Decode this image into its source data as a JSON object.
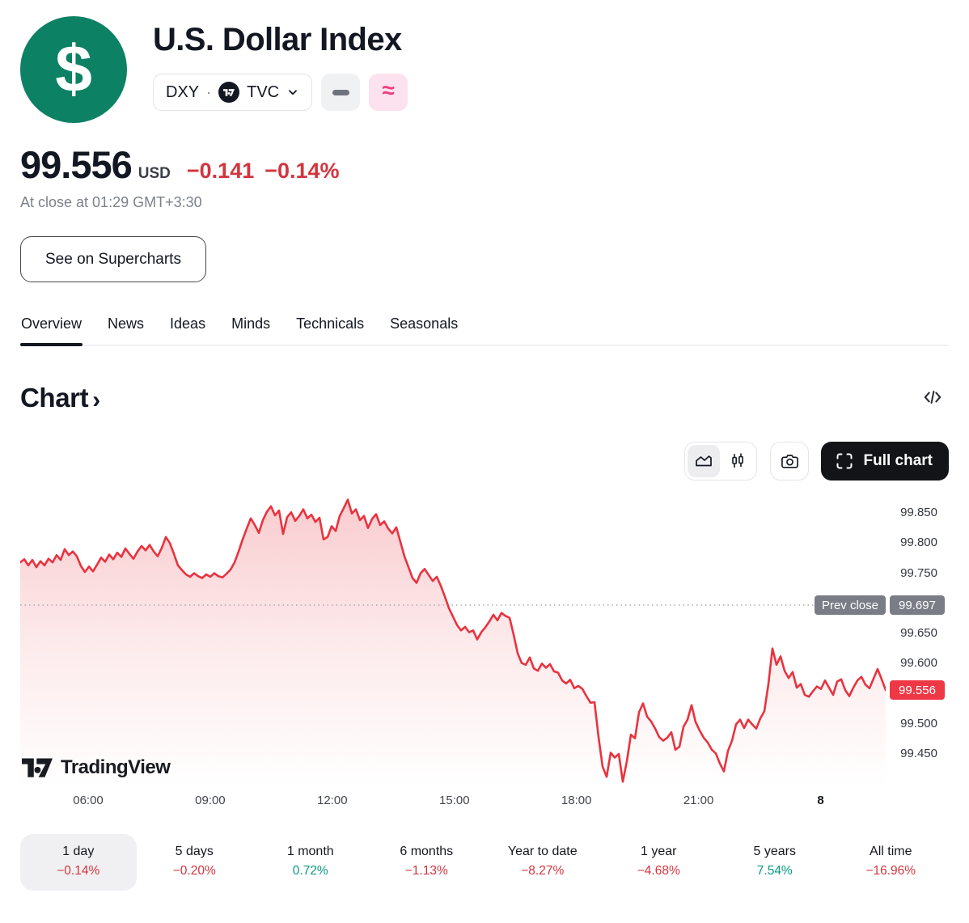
{
  "header": {
    "logo_glyph": "$",
    "title": "U.S. Dollar Index",
    "symbol": "DXY",
    "separator": "·",
    "exchange": "TVC",
    "approx_glyph": "≈",
    "price": "99.556",
    "currency": "USD",
    "change": "−0.141",
    "change_pct": "−0.14%",
    "status_note": "At close at 01:29 GMT+3:30",
    "supercharts_label": "See on Supercharts"
  },
  "tabs": [
    "Overview",
    "News",
    "Ideas",
    "Minds",
    "Technicals",
    "Seasonals"
  ],
  "active_tab": "Overview",
  "chart_section": {
    "title": "Chart",
    "chevron": "›",
    "full_chart_label": "Full chart",
    "watermark": "TradingView"
  },
  "colors": {
    "brand_green": "#0d8164",
    "pink_bg": "#fce1ee",
    "pink_icon": "#f03e81",
    "dash_gray": "#6f737e",
    "red_text": "#d2353f",
    "green_text": "#089981",
    "chart_line": "#e8333f",
    "chart_fill_top": "rgba(232,51,63,0.25)",
    "chart_fill_mid": "rgba(232,51,63,0.10)",
    "chart_fill_bottom": "rgba(232,51,63,0)",
    "prev_close_badge": "#7a7d86",
    "last_price_badge": "#ef3845",
    "dotted_line": "#9b9ea7"
  },
  "chart_data": {
    "type": "area",
    "title": "U.S. Dollar Index intraday (1 day)",
    "xlabel": "",
    "ylabel": "",
    "grid": false,
    "ylim": [
      99.395,
      99.885
    ],
    "x_range_hours": [
      4.33,
      25.6
    ],
    "sampling": "uniform over x_range_hours",
    "x_ticks": [
      {
        "label": "06:00",
        "hour": 6
      },
      {
        "label": "09:00",
        "hour": 9
      },
      {
        "label": "12:00",
        "hour": 12
      },
      {
        "label": "15:00",
        "hour": 15
      },
      {
        "label": "18:00",
        "hour": 18
      },
      {
        "label": "21:00",
        "hour": 21
      },
      {
        "label": "8",
        "hour": 24,
        "bold": true
      }
    ],
    "y_ticks": [
      "99.850",
      "99.800",
      "99.750",
      "99.650",
      "99.600",
      "99.500",
      "99.450"
    ],
    "prev_close": {
      "label": "Prev close",
      "value": 99.697,
      "display": "99.697"
    },
    "last": {
      "value": 99.556,
      "display": "99.556"
    },
    "prices": [
      99.768,
      99.773,
      99.763,
      99.772,
      99.76,
      99.77,
      99.763,
      99.774,
      99.768,
      99.78,
      99.772,
      99.79,
      99.78,
      99.786,
      99.778,
      99.762,
      99.752,
      99.761,
      99.753,
      99.764,
      99.776,
      99.769,
      99.781,
      99.773,
      99.784,
      99.777,
      99.791,
      99.782,
      99.774,
      99.786,
      99.795,
      99.788,
      99.797,
      99.786,
      99.778,
      99.792,
      99.81,
      99.8,
      99.782,
      99.763,
      99.755,
      99.748,
      99.744,
      99.75,
      99.745,
      99.742,
      99.748,
      99.744,
      99.75,
      99.745,
      99.743,
      99.749,
      99.756,
      99.768,
      99.786,
      99.806,
      99.824,
      99.841,
      99.83,
      99.817,
      99.838,
      99.852,
      99.861,
      99.846,
      99.854,
      99.815,
      99.843,
      99.851,
      99.837,
      99.845,
      99.856,
      99.841,
      99.847,
      99.835,
      99.842,
      99.806,
      99.81,
      99.828,
      99.82,
      99.845,
      99.858,
      99.872,
      99.849,
      99.856,
      99.838,
      99.845,
      99.825,
      99.84,
      99.848,
      99.83,
      99.836,
      99.824,
      99.816,
      99.826,
      99.802,
      99.778,
      99.76,
      99.742,
      99.734,
      99.75,
      99.757,
      99.747,
      99.737,
      99.744,
      99.729,
      99.711,
      99.692,
      99.678,
      99.664,
      99.655,
      99.661,
      99.652,
      99.655,
      99.64,
      99.652,
      99.66,
      99.67,
      99.681,
      99.672,
      99.684,
      99.679,
      99.676,
      99.648,
      99.617,
      99.601,
      99.598,
      99.61,
      99.592,
      99.588,
      99.6,
      99.593,
      99.599,
      99.587,
      99.585,
      99.572,
      99.567,
      99.573,
      99.559,
      99.563,
      99.558,
      99.546,
      99.535,
      99.536,
      99.478,
      99.429,
      99.412,
      99.452,
      99.444,
      99.45,
      99.404,
      99.438,
      99.482,
      99.476,
      99.519,
      99.534,
      99.512,
      99.504,
      99.492,
      99.478,
      99.472,
      99.477,
      99.486,
      99.457,
      99.462,
      99.495,
      99.507,
      99.531,
      99.503,
      99.489,
      99.477,
      99.469,
      99.457,
      99.451,
      99.434,
      99.421,
      99.455,
      99.472,
      99.499,
      99.507,
      99.493,
      99.507,
      99.499,
      99.492,
      99.509,
      99.521,
      99.566,
      99.625,
      99.598,
      99.612,
      99.588,
      99.576,
      99.586,
      99.56,
      99.566,
      99.548,
      99.545,
      99.554,
      99.562,
      99.558,
      99.572,
      99.56,
      99.548,
      99.57,
      99.574,
      99.556,
      99.546,
      99.56,
      99.572,
      99.578,
      99.565,
      99.559,
      99.575,
      99.591,
      99.574,
      99.556
    ]
  },
  "periods": [
    {
      "label": "1 day",
      "value": "−0.14%",
      "direction": "down",
      "active": true
    },
    {
      "label": "5 days",
      "value": "−0.20%",
      "direction": "down",
      "active": false
    },
    {
      "label": "1 month",
      "value": "0.72%",
      "direction": "up",
      "active": false
    },
    {
      "label": "6 months",
      "value": "−1.13%",
      "direction": "down",
      "active": false
    },
    {
      "label": "Year to date",
      "value": "−8.27%",
      "direction": "down",
      "active": false
    },
    {
      "label": "1 year",
      "value": "−4.68%",
      "direction": "down",
      "active": false
    },
    {
      "label": "5 years",
      "value": "7.54%",
      "direction": "up",
      "active": false
    },
    {
      "label": "All time",
      "value": "−16.96%",
      "direction": "down",
      "active": false
    }
  ]
}
